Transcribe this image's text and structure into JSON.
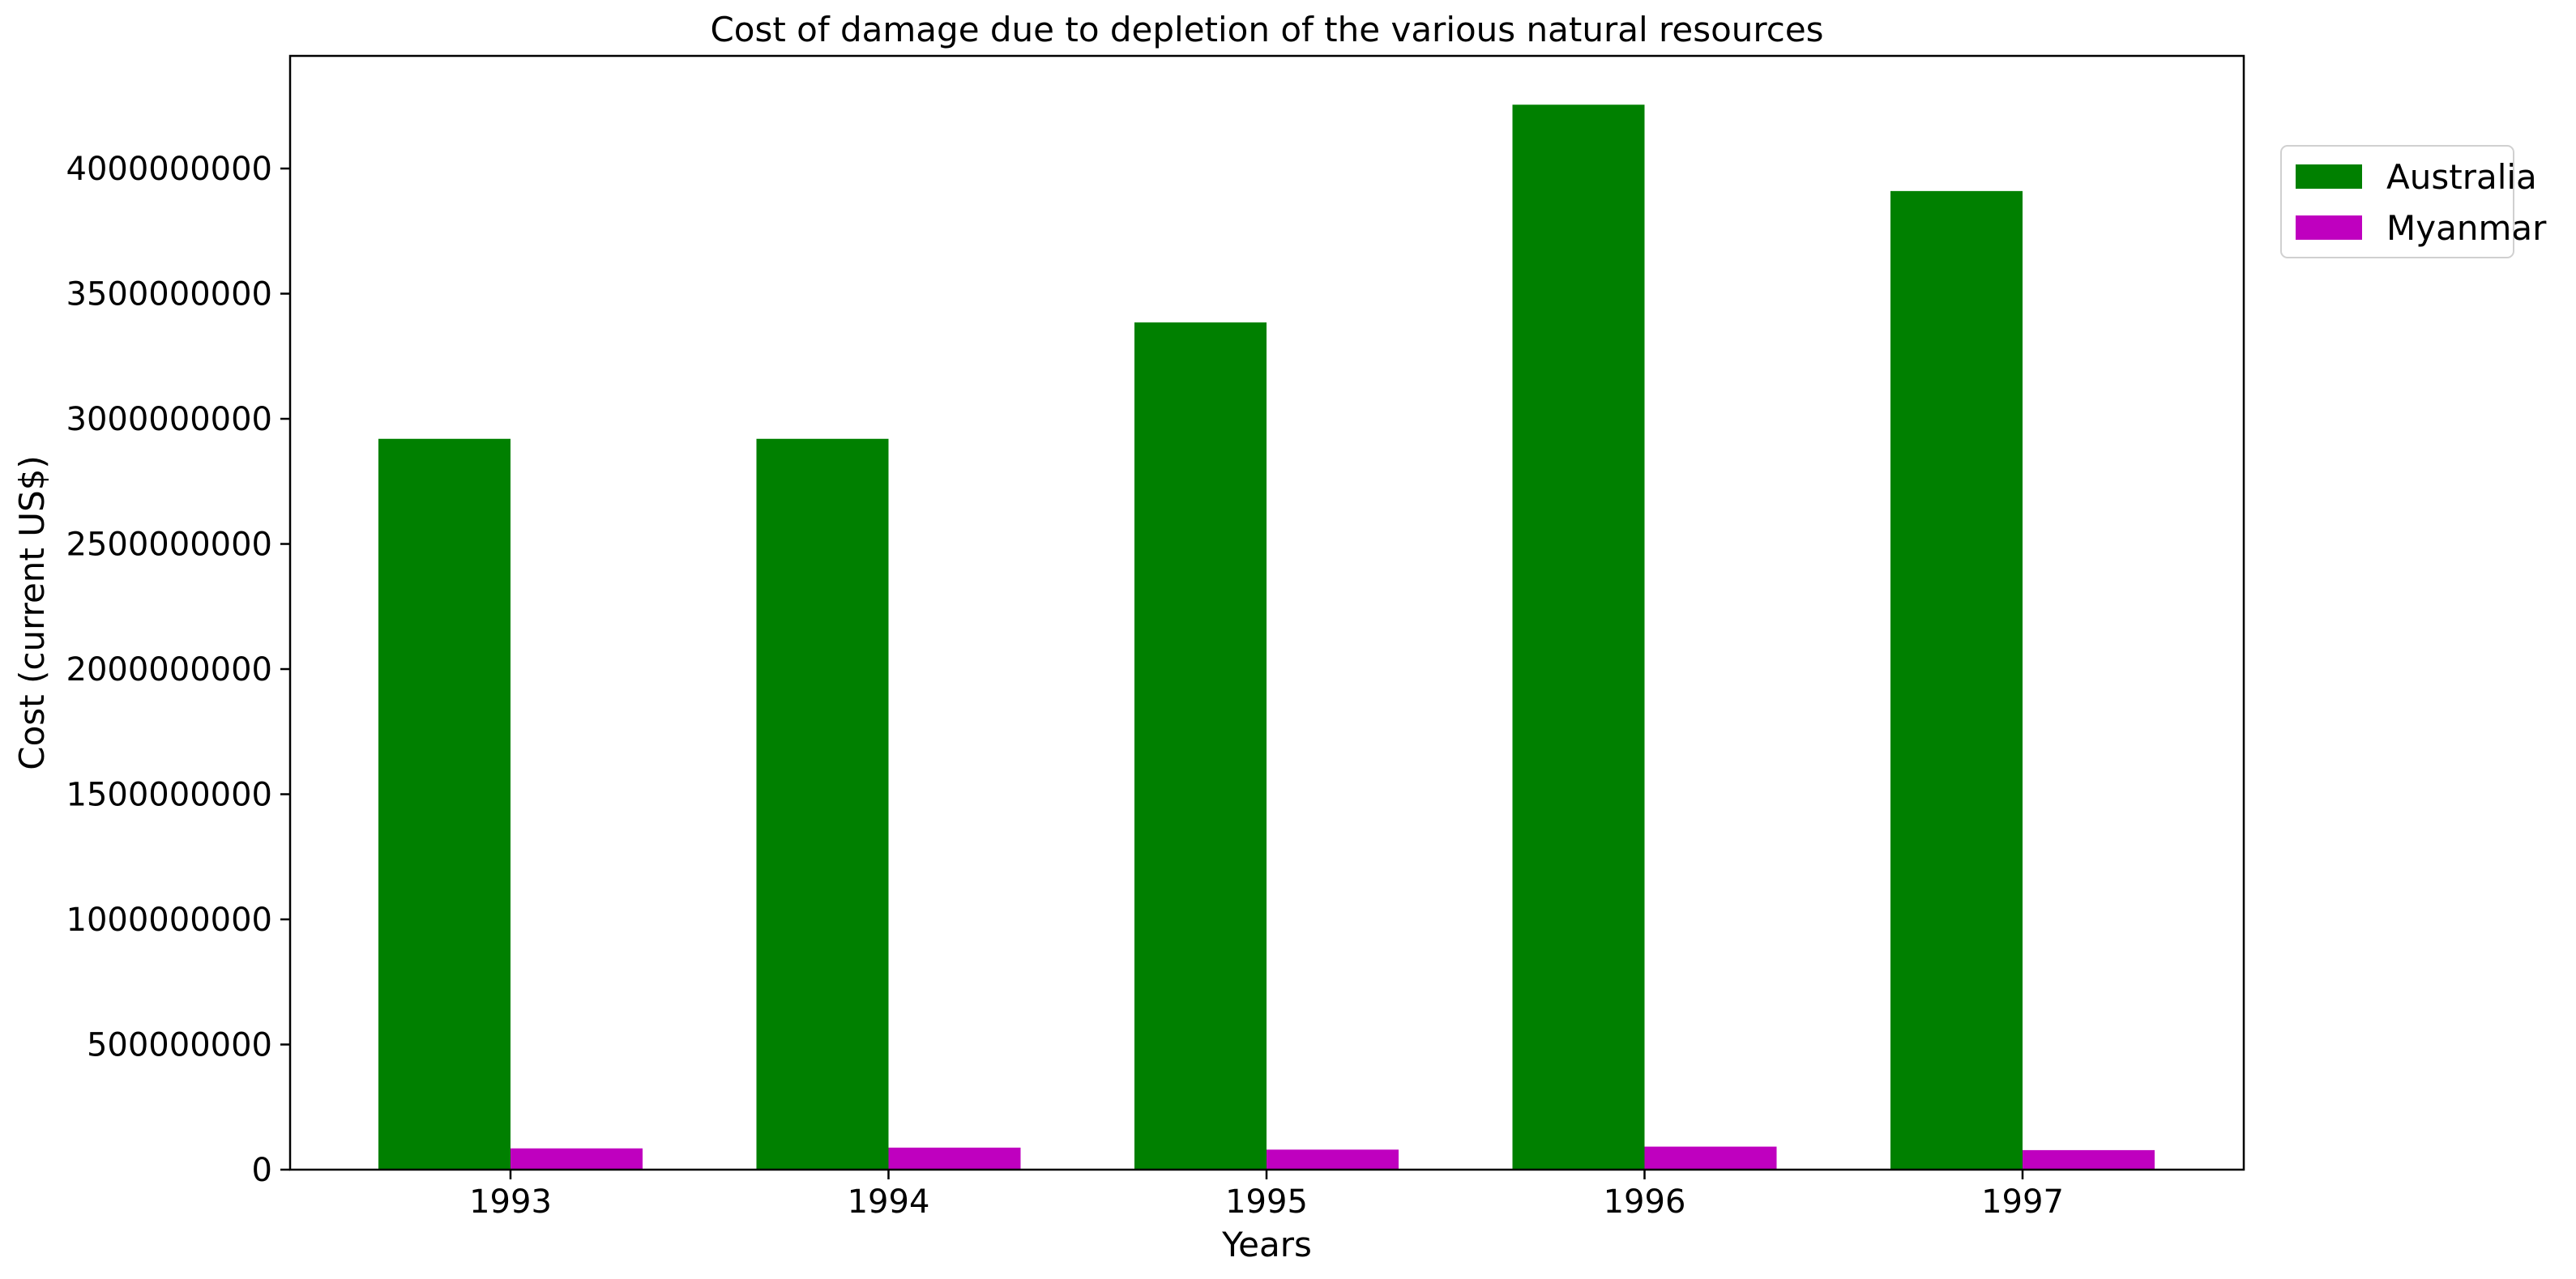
{
  "chart_data": {
    "type": "bar",
    "title": "Cost of damage due to depletion of the various natural resources",
    "xlabel": "Years",
    "ylabel": "Cost (current US$)",
    "categories": [
      "1993",
      "1994",
      "1995",
      "1996",
      "1997"
    ],
    "series": [
      {
        "name": "Australia",
        "color": "#008000",
        "values": [
          2920000000,
          2920000000,
          3385000000,
          4255000000,
          3910000000
        ]
      },
      {
        "name": "Myanmar",
        "color": "#bf00bf",
        "values": [
          85000000,
          88000000,
          80000000,
          92000000,
          78000000
        ]
      }
    ],
    "ylim": [
      0,
      4450000000
    ],
    "yticks": [
      0,
      500000000,
      1000000000,
      1500000000,
      2000000000,
      2500000000,
      3000000000,
      3500000000,
      4000000000
    ],
    "ytick_labels": [
      "0",
      "500000000",
      "1000000000",
      "1500000000",
      "2000000000",
      "2500000000",
      "3000000000",
      "3500000000",
      "4000000000"
    ],
    "grid": false,
    "legend_position": "top-right"
  }
}
